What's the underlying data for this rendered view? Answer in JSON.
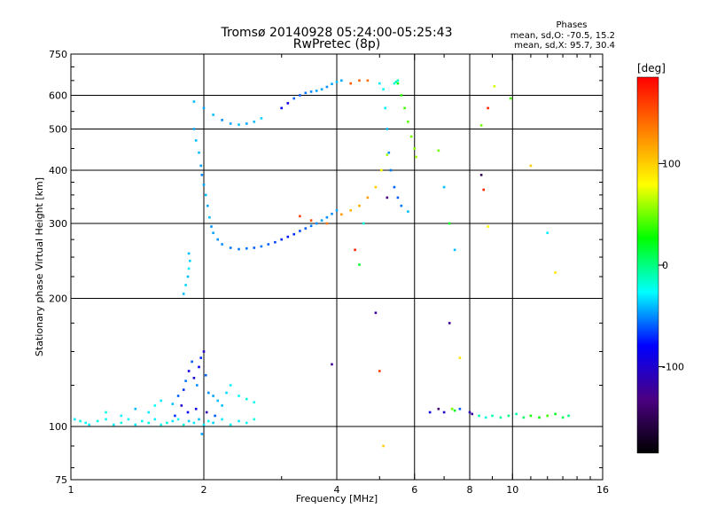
{
  "header": {
    "title": "Tromsø 20140928 05:24:00-05:25:43",
    "subtitle": "RwPretec (8p)",
    "phases_title": "Phases",
    "phases_o": "mean, sd,O:  -70.5,  15.2",
    "phases_x": "mean, sd,X:   95.7,  30.4"
  },
  "colorbar": {
    "label": "[deg]",
    "ticks": [
      {
        "value": 100,
        "label": "100"
      },
      {
        "value": 0,
        "label": "0"
      },
      {
        "value": -100,
        "label": "-100"
      }
    ],
    "range": [
      -185,
      185
    ],
    "colors": [
      "#000000",
      "#4b0082",
      "#0000ff",
      "#00ffff",
      "#00ff00",
      "#ffff00",
      "#ff8000",
      "#ff0000"
    ]
  },
  "chart_data": {
    "type": "scatter",
    "title": "Tromsø 20140928 05:24:00-05:25:43",
    "subtitle": "RwPretec (8p)",
    "xlabel": "Frequency [MHz]",
    "ylabel": "Stationary phase Virtual Height [km]",
    "x_scale": "log",
    "y_scale": "log",
    "xlim": [
      1,
      16
    ],
    "ylim": [
      75,
      750
    ],
    "x_ticks": [
      1,
      2,
      4,
      6,
      8,
      10,
      16
    ],
    "x_tick_labels": [
      "1",
      "2",
      "4",
      "6",
      "8",
      "10",
      "16"
    ],
    "y_ticks": [
      75,
      100,
      200,
      300,
      400,
      500,
      600,
      750
    ],
    "y_tick_labels": [
      "75",
      "100",
      "200",
      "300",
      "400",
      "500",
      "600",
      "750"
    ],
    "grid_x": [
      2,
      4,
      6,
      8,
      10
    ],
    "grid_y": [
      100,
      200,
      300,
      400,
      500,
      600
    ],
    "color_meaning": "phase [deg]",
    "series": [
      {
        "points": [
          [
            1.02,
            104,
            -30
          ],
          [
            1.05,
            103,
            -20
          ],
          [
            1.08,
            102,
            -25
          ],
          [
            1.1,
            101,
            -30
          ],
          [
            1.15,
            103,
            -20
          ],
          [
            1.2,
            104,
            -25
          ],
          [
            1.25,
            101,
            -30
          ],
          [
            1.3,
            102,
            -20
          ],
          [
            1.35,
            104,
            -25
          ],
          [
            1.4,
            101,
            -30
          ],
          [
            1.45,
            103,
            -25
          ],
          [
            1.5,
            102,
            -20
          ],
          [
            1.55,
            104,
            -30
          ],
          [
            1.6,
            101,
            -25
          ],
          [
            1.65,
            102,
            -20
          ],
          [
            1.7,
            103,
            -30
          ],
          [
            1.75,
            104,
            -25
          ],
          [
            1.8,
            101,
            -20
          ],
          [
            1.85,
            103,
            -35
          ],
          [
            1.9,
            102,
            -30
          ],
          [
            1.95,
            104,
            -40
          ],
          [
            2.0,
            101,
            -30
          ],
          [
            2.05,
            103,
            -25
          ],
          [
            2.1,
            102,
            -35
          ],
          [
            2.2,
            104,
            -30
          ],
          [
            2.3,
            101,
            -25
          ],
          [
            2.4,
            103,
            -30
          ],
          [
            2.5,
            102,
            -25
          ],
          [
            2.6,
            104,
            -20
          ],
          [
            1.2,
            108,
            -20
          ],
          [
            1.3,
            106,
            -30
          ],
          [
            1.4,
            110,
            -40
          ],
          [
            1.5,
            108,
            -30
          ],
          [
            1.55,
            112,
            -25
          ],
          [
            1.6,
            115,
            -30
          ],
          [
            1.7,
            113,
            -40
          ],
          [
            1.75,
            118,
            -60
          ],
          [
            1.8,
            122,
            -70
          ],
          [
            1.82,
            128,
            -55
          ],
          [
            1.85,
            135,
            -90
          ],
          [
            1.88,
            142,
            -60
          ],
          [
            1.9,
            130,
            -95
          ],
          [
            1.93,
            125,
            -50
          ],
          [
            1.95,
            138,
            -80
          ],
          [
            1.97,
            145,
            -70
          ],
          [
            2.0,
            150,
            -100
          ],
          [
            2.02,
            132,
            -60
          ],
          [
            2.05,
            120,
            -50
          ],
          [
            2.1,
            118,
            -45
          ],
          [
            2.15,
            115,
            -40
          ],
          [
            2.2,
            112,
            -40
          ],
          [
            2.25,
            120,
            -35
          ],
          [
            2.3,
            125,
            -30
          ],
          [
            2.4,
            118,
            -25
          ],
          [
            2.5,
            116,
            -20
          ],
          [
            2.6,
            114,
            -25
          ],
          [
            1.72,
            106,
            -70
          ],
          [
            1.78,
            112,
            -100
          ],
          [
            1.92,
            110,
            -90
          ],
          [
            2.03,
            108,
            -110
          ],
          [
            2.12,
            106,
            -60
          ],
          [
            1.98,
            96,
            -45
          ],
          [
            1.84,
            108,
            -80
          ],
          [
            1.8,
            205,
            -40
          ],
          [
            1.82,
            215,
            -35
          ],
          [
            1.84,
            225,
            -40
          ],
          [
            1.85,
            235,
            -30
          ],
          [
            1.86,
            245,
            -35
          ],
          [
            1.85,
            255,
            -40
          ],
          [
            1.9,
            500,
            -45
          ],
          [
            1.92,
            470,
            -40
          ],
          [
            1.95,
            440,
            -40
          ],
          [
            1.97,
            410,
            -45
          ],
          [
            1.98,
            390,
            -50
          ],
          [
            2.0,
            370,
            -45
          ],
          [
            2.02,
            350,
            -40
          ],
          [
            2.04,
            330,
            -45
          ],
          [
            2.06,
            310,
            -40
          ],
          [
            2.08,
            295,
            -50
          ],
          [
            2.1,
            285,
            -45
          ],
          [
            2.15,
            275,
            -50
          ],
          [
            2.2,
            268,
            -50
          ],
          [
            2.3,
            263,
            -55
          ],
          [
            2.4,
            261,
            -55
          ],
          [
            2.5,
            262,
            -55
          ],
          [
            2.6,
            263,
            -60
          ],
          [
            2.7,
            265,
            -55
          ],
          [
            2.8,
            268,
            -60
          ],
          [
            2.9,
            271,
            -65
          ],
          [
            3.0,
            275,
            -70
          ],
          [
            3.1,
            279,
            -75
          ],
          [
            3.2,
            283,
            -70
          ],
          [
            3.3,
            288,
            -65
          ],
          [
            3.4,
            292,
            -60
          ],
          [
            3.5,
            296,
            -55
          ],
          [
            3.6,
            300,
            -50
          ],
          [
            3.7,
            305,
            -45
          ],
          [
            3.8,
            310,
            -50
          ],
          [
            3.9,
            316,
            -50
          ],
          [
            4.0,
            322,
            -45
          ],
          [
            1.9,
            580,
            -40
          ],
          [
            2.0,
            560,
            -45
          ],
          [
            2.1,
            540,
            -40
          ],
          [
            2.2,
            525,
            -50
          ],
          [
            2.3,
            515,
            -45
          ],
          [
            2.4,
            512,
            -40
          ],
          [
            2.5,
            515,
            -45
          ],
          [
            2.6,
            520,
            -40
          ],
          [
            2.7,
            530,
            -35
          ],
          [
            3.0,
            560,
            -80
          ],
          [
            3.1,
            575,
            -90
          ],
          [
            3.2,
            590,
            -60
          ],
          [
            3.3,
            600,
            -60
          ],
          [
            3.4,
            608,
            -55
          ],
          [
            3.5,
            612,
            -50
          ],
          [
            3.6,
            615,
            -45
          ],
          [
            3.7,
            620,
            -45
          ],
          [
            3.8,
            628,
            -50
          ],
          [
            3.9,
            638,
            -45
          ],
          [
            4.0,
            645,
            -40
          ],
          [
            4.1,
            650,
            -45
          ],
          [
            4.3,
            640,
            150
          ],
          [
            4.5,
            650,
            145
          ],
          [
            4.7,
            650,
            140
          ],
          [
            3.3,
            312,
            160
          ],
          [
            3.5,
            305,
            155
          ],
          [
            3.8,
            300,
            135
          ],
          [
            4.1,
            315,
            120
          ],
          [
            4.3,
            322,
            110
          ],
          [
            4.5,
            330,
            115
          ],
          [
            4.7,
            345,
            120
          ],
          [
            4.9,
            365,
            100
          ],
          [
            5.05,
            400,
            80
          ],
          [
            5.2,
            435,
            60
          ],
          [
            5.0,
            640,
            -30
          ],
          [
            5.1,
            620,
            -25
          ],
          [
            5.15,
            560,
            -30
          ],
          [
            5.2,
            500,
            -40
          ],
          [
            5.25,
            440,
            -50
          ],
          [
            5.3,
            400,
            -55
          ],
          [
            5.4,
            365,
            -60
          ],
          [
            5.5,
            345,
            -60
          ],
          [
            5.6,
            330,
            -55
          ],
          [
            5.8,
            320,
            -40
          ],
          [
            5.5,
            640,
            30
          ],
          [
            5.6,
            600,
            35
          ],
          [
            5.7,
            560,
            40
          ],
          [
            5.8,
            520,
            45
          ],
          [
            5.9,
            480,
            50
          ],
          [
            6.0,
            450,
            55
          ],
          [
            6.05,
            430,
            60
          ],
          [
            5.4,
            640,
            -20
          ],
          [
            5.45,
            645,
            -10
          ],
          [
            5.5,
            650,
            -15
          ],
          [
            4.4,
            260,
            170
          ],
          [
            4.5,
            240,
            20
          ],
          [
            4.9,
            185,
            -120
          ],
          [
            5.0,
            135,
            160
          ],
          [
            5.1,
            90,
            100
          ],
          [
            3.9,
            140,
            -120
          ],
          [
            4.6,
            300,
            -20
          ],
          [
            5.2,
            345,
            -130
          ],
          [
            6.8,
            445,
            50
          ],
          [
            7.0,
            365,
            -40
          ],
          [
            7.2,
            300,
            20
          ],
          [
            7.4,
            260,
            -40
          ],
          [
            7.2,
            175,
            -120
          ],
          [
            7.6,
            145,
            90
          ],
          [
            7.3,
            110,
            50
          ],
          [
            8.5,
            390,
            -150
          ],
          [
            8.6,
            360,
            170
          ],
          [
            8.8,
            295,
            80
          ],
          [
            9.1,
            630,
            70
          ],
          [
            8.8,
            560,
            170
          ],
          [
            8.5,
            510,
            50
          ],
          [
            9.9,
            590,
            40
          ],
          [
            11.0,
            410,
            100
          ],
          [
            12.0,
            285,
            -30
          ],
          [
            12.5,
            230,
            90
          ],
          [
            6.5,
            108,
            -90
          ],
          [
            6.8,
            110,
            -140
          ],
          [
            7.0,
            108,
            -100
          ],
          [
            7.4,
            109,
            20
          ],
          [
            7.6,
            110,
            -60
          ],
          [
            8.0,
            108,
            -110
          ],
          [
            8.1,
            107,
            -120
          ],
          [
            8.4,
            106,
            -10
          ],
          [
            8.7,
            105,
            -20
          ],
          [
            9.0,
            106,
            -10
          ],
          [
            9.4,
            105,
            -5
          ],
          [
            9.8,
            106,
            0
          ],
          [
            10.2,
            107,
            -10
          ],
          [
            10.6,
            105,
            5
          ],
          [
            11.0,
            106,
            30
          ],
          [
            11.5,
            105,
            25
          ],
          [
            12.0,
            106,
            40
          ],
          [
            12.5,
            107,
            20
          ],
          [
            13.0,
            105,
            10
          ],
          [
            13.4,
            106,
            0
          ]
        ]
      }
    ]
  }
}
